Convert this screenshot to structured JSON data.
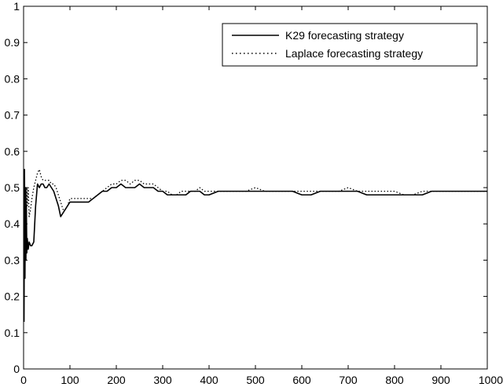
{
  "chart_data": {
    "type": "line",
    "title": "",
    "xlabel": "",
    "ylabel": "",
    "xlim": [
      0,
      1000
    ],
    "ylim": [
      0,
      1
    ],
    "x_ticks": [
      0,
      100,
      200,
      300,
      400,
      500,
      600,
      700,
      800,
      900,
      1000
    ],
    "x_tick_labels": [
      "0",
      "100",
      "200",
      "300",
      "400",
      "500",
      "600",
      "700",
      "800",
      "900",
      "1000"
    ],
    "y_ticks": [
      0,
      0.1,
      0.2,
      0.3,
      0.4,
      0.5,
      0.6,
      0.7,
      0.8,
      0.9,
      1
    ],
    "y_tick_labels": [
      "0",
      "0.1",
      "0.2",
      "0.3",
      "0.4",
      "0.5",
      "0.6",
      "0.7",
      "0.8",
      "0.9",
      "1"
    ],
    "grid": false,
    "legend_position": "top-right",
    "series": [
      {
        "name": "K29 forecasting strategy",
        "line_style": "solid",
        "color": "#000000",
        "x": [
          1,
          2,
          3,
          4,
          5,
          6,
          7,
          8,
          10,
          12,
          15,
          18,
          22,
          26,
          30,
          34,
          38,
          42,
          46,
          50,
          55,
          60,
          65,
          70,
          75,
          80,
          85,
          90,
          95,
          100,
          110,
          120,
          130,
          140,
          150,
          160,
          170,
          180,
          190,
          200,
          210,
          220,
          230,
          240,
          250,
          260,
          270,
          280,
          290,
          300,
          310,
          320,
          330,
          340,
          350,
          360,
          370,
          380,
          390,
          400,
          420,
          440,
          460,
          480,
          500,
          520,
          540,
          560,
          580,
          600,
          620,
          640,
          660,
          680,
          700,
          720,
          740,
          760,
          780,
          800,
          820,
          840,
          860,
          880,
          900,
          920,
          940,
          960,
          980,
          1000
        ],
        "y": [
          0.13,
          0.55,
          0.25,
          0.5,
          0.3,
          0.45,
          0.32,
          0.36,
          0.33,
          0.35,
          0.34,
          0.34,
          0.35,
          0.45,
          0.51,
          0.5,
          0.51,
          0.51,
          0.5,
          0.5,
          0.51,
          0.5,
          0.49,
          0.47,
          0.45,
          0.42,
          0.43,
          0.44,
          0.45,
          0.46,
          0.46,
          0.46,
          0.46,
          0.46,
          0.47,
          0.48,
          0.49,
          0.49,
          0.5,
          0.5,
          0.51,
          0.5,
          0.5,
          0.5,
          0.51,
          0.5,
          0.5,
          0.5,
          0.49,
          0.49,
          0.48,
          0.48,
          0.48,
          0.48,
          0.48,
          0.49,
          0.49,
          0.49,
          0.48,
          0.48,
          0.49,
          0.49,
          0.49,
          0.49,
          0.49,
          0.49,
          0.49,
          0.49,
          0.49,
          0.48,
          0.48,
          0.49,
          0.49,
          0.49,
          0.49,
          0.49,
          0.48,
          0.48,
          0.48,
          0.48,
          0.48,
          0.48,
          0.48,
          0.49,
          0.49,
          0.49,
          0.49,
          0.49,
          0.49,
          0.49
        ]
      },
      {
        "name": "Laplace forecasting strategy",
        "line_style": "dotted",
        "color": "#000000",
        "x": [
          1,
          2,
          3,
          4,
          5,
          6,
          7,
          8,
          10,
          12,
          15,
          18,
          22,
          26,
          30,
          34,
          38,
          42,
          46,
          50,
          55,
          60,
          65,
          70,
          75,
          80,
          85,
          90,
          95,
          100,
          110,
          120,
          130,
          140,
          150,
          160,
          170,
          180,
          190,
          200,
          210,
          220,
          230,
          240,
          250,
          260,
          270,
          280,
          290,
          300,
          310,
          320,
          330,
          340,
          350,
          360,
          370,
          380,
          390,
          400,
          420,
          440,
          460,
          480,
          500,
          520,
          540,
          560,
          580,
          600,
          620,
          640,
          660,
          680,
          700,
          720,
          740,
          760,
          780,
          800,
          820,
          840,
          860,
          880,
          900,
          920,
          940,
          960,
          980,
          1000
        ],
        "y": [
          0.5,
          0.33,
          0.5,
          0.4,
          0.5,
          0.43,
          0.5,
          0.45,
          0.5,
          0.42,
          0.44,
          0.47,
          0.5,
          0.52,
          0.54,
          0.55,
          0.53,
          0.52,
          0.52,
          0.52,
          0.52,
          0.51,
          0.51,
          0.5,
          0.48,
          0.46,
          0.44,
          0.44,
          0.45,
          0.47,
          0.47,
          0.47,
          0.47,
          0.47,
          0.47,
          0.48,
          0.49,
          0.5,
          0.51,
          0.51,
          0.52,
          0.52,
          0.51,
          0.52,
          0.52,
          0.51,
          0.51,
          0.51,
          0.5,
          0.49,
          0.49,
          0.48,
          0.48,
          0.49,
          0.49,
          0.49,
          0.49,
          0.5,
          0.49,
          0.49,
          0.49,
          0.49,
          0.49,
          0.49,
          0.5,
          0.49,
          0.49,
          0.49,
          0.49,
          0.49,
          0.49,
          0.49,
          0.49,
          0.49,
          0.5,
          0.49,
          0.49,
          0.49,
          0.49,
          0.49,
          0.48,
          0.48,
          0.49,
          0.49,
          0.49,
          0.49,
          0.49,
          0.49,
          0.49,
          0.49
        ]
      }
    ]
  }
}
